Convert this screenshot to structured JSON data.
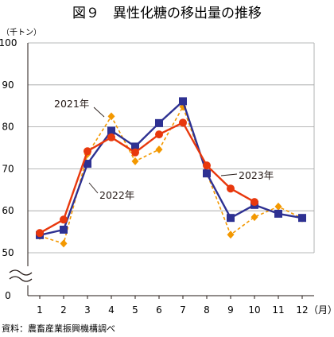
{
  "chart_data": {
    "type": "line",
    "title": "図９　異性化糖の移出量の推移",
    "y_unit": "（千トン）",
    "x_unit": "（月）",
    "x": [
      1,
      2,
      3,
      4,
      5,
      6,
      7,
      8,
      9,
      10,
      11,
      12
    ],
    "ylim": [
      50,
      100
    ],
    "y_ticks": [
      0,
      50,
      60,
      70,
      80,
      90,
      100
    ],
    "axis_break": true,
    "grid": true,
    "source": "資料：農畜産業振興機構調べ",
    "series": [
      {
        "name": "2021年",
        "color": "#f39800",
        "marker": "diamond",
        "dash": true,
        "values": [
          54.0,
          52.2,
          73.5,
          82.5,
          71.8,
          74.6,
          84.8,
          69.0,
          54.3,
          58.5,
          61.0,
          58.2
        ]
      },
      {
        "name": "2022年",
        "color": "#2e3192",
        "marker": "square",
        "dash": false,
        "values": [
          54.2,
          55.5,
          71.2,
          79.1,
          75.3,
          80.9,
          86.1,
          68.9,
          58.3,
          61.4,
          59.3,
          58.3
        ]
      },
      {
        "name": "2023年",
        "color": "#e8380d",
        "marker": "circle",
        "dash": false,
        "values": [
          54.7,
          57.9,
          74.2,
          77.5,
          73.9,
          78.2,
          81.0,
          70.8,
          65.3,
          62.1,
          null,
          null
        ]
      }
    ],
    "annotations": [
      {
        "series": "2021年",
        "text": "2021年"
      },
      {
        "series": "2022年",
        "text": "2022年"
      },
      {
        "series": "2023年",
        "text": "2023年"
      }
    ]
  }
}
